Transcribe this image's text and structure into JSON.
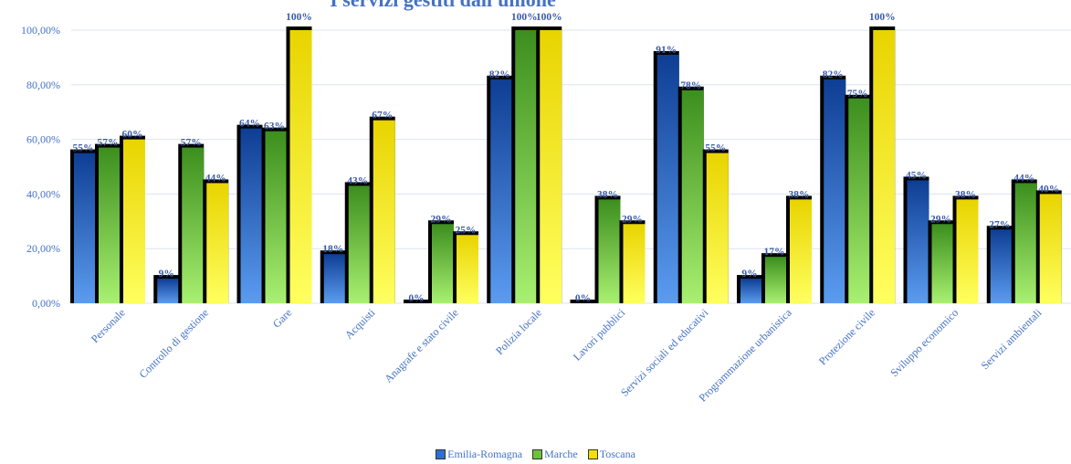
{
  "chart_data": {
    "type": "bar",
    "title": "I servizi gestiti dall'unione",
    "xlabel": "",
    "ylabel": "",
    "ylim": [
      0,
      100
    ],
    "yticks": [
      "0,00%",
      "20,00%",
      "40,00%",
      "60,00%",
      "80,00%",
      "100,00%"
    ],
    "grid": true,
    "legend_position": "bottom",
    "categories": [
      "Personale",
      "Controllo di gestione",
      "Gare",
      "Acquisti",
      "Anagrafe e stato civile",
      "Polizia locale",
      "Lavori pubblici",
      "Servizi sociali ed educativi",
      "Programmazione urbanistica",
      "Protezione civile",
      "Sviluppo economico",
      "Servizi ambientali"
    ],
    "series": [
      {
        "name": "Emilia-Romagna",
        "color": "#2F6FD0",
        "values": [
          55,
          9,
          64,
          18,
          0,
          82,
          0,
          91,
          9,
          82,
          45,
          27
        ],
        "labels": [
          "55%",
          "9%",
          "64%",
          "18%",
          "0%",
          "82%",
          "0%",
          "91%",
          "9%",
          "82%",
          "45%",
          "27%"
        ]
      },
      {
        "name": "Marche",
        "color": "#6DC23A",
        "values": [
          57,
          57,
          63,
          43,
          29,
          100,
          38,
          78,
          17,
          75,
          29,
          44
        ],
        "labels": [
          "57%",
          "57%",
          "63%",
          "43%",
          "29%",
          "100%",
          "38%",
          "78%",
          "17%",
          "75%",
          "29%",
          "44%"
        ]
      },
      {
        "name": "Toscana",
        "color": "#F2E000",
        "values": [
          60,
          44,
          100,
          67,
          25,
          100,
          29,
          55,
          38,
          100,
          38,
          40
        ],
        "labels": [
          "60%",
          "44%",
          "100%",
          "67%",
          "25%",
          "100%",
          "29%",
          "55%",
          "38%",
          "100%",
          "38%",
          "40%"
        ]
      }
    ]
  }
}
